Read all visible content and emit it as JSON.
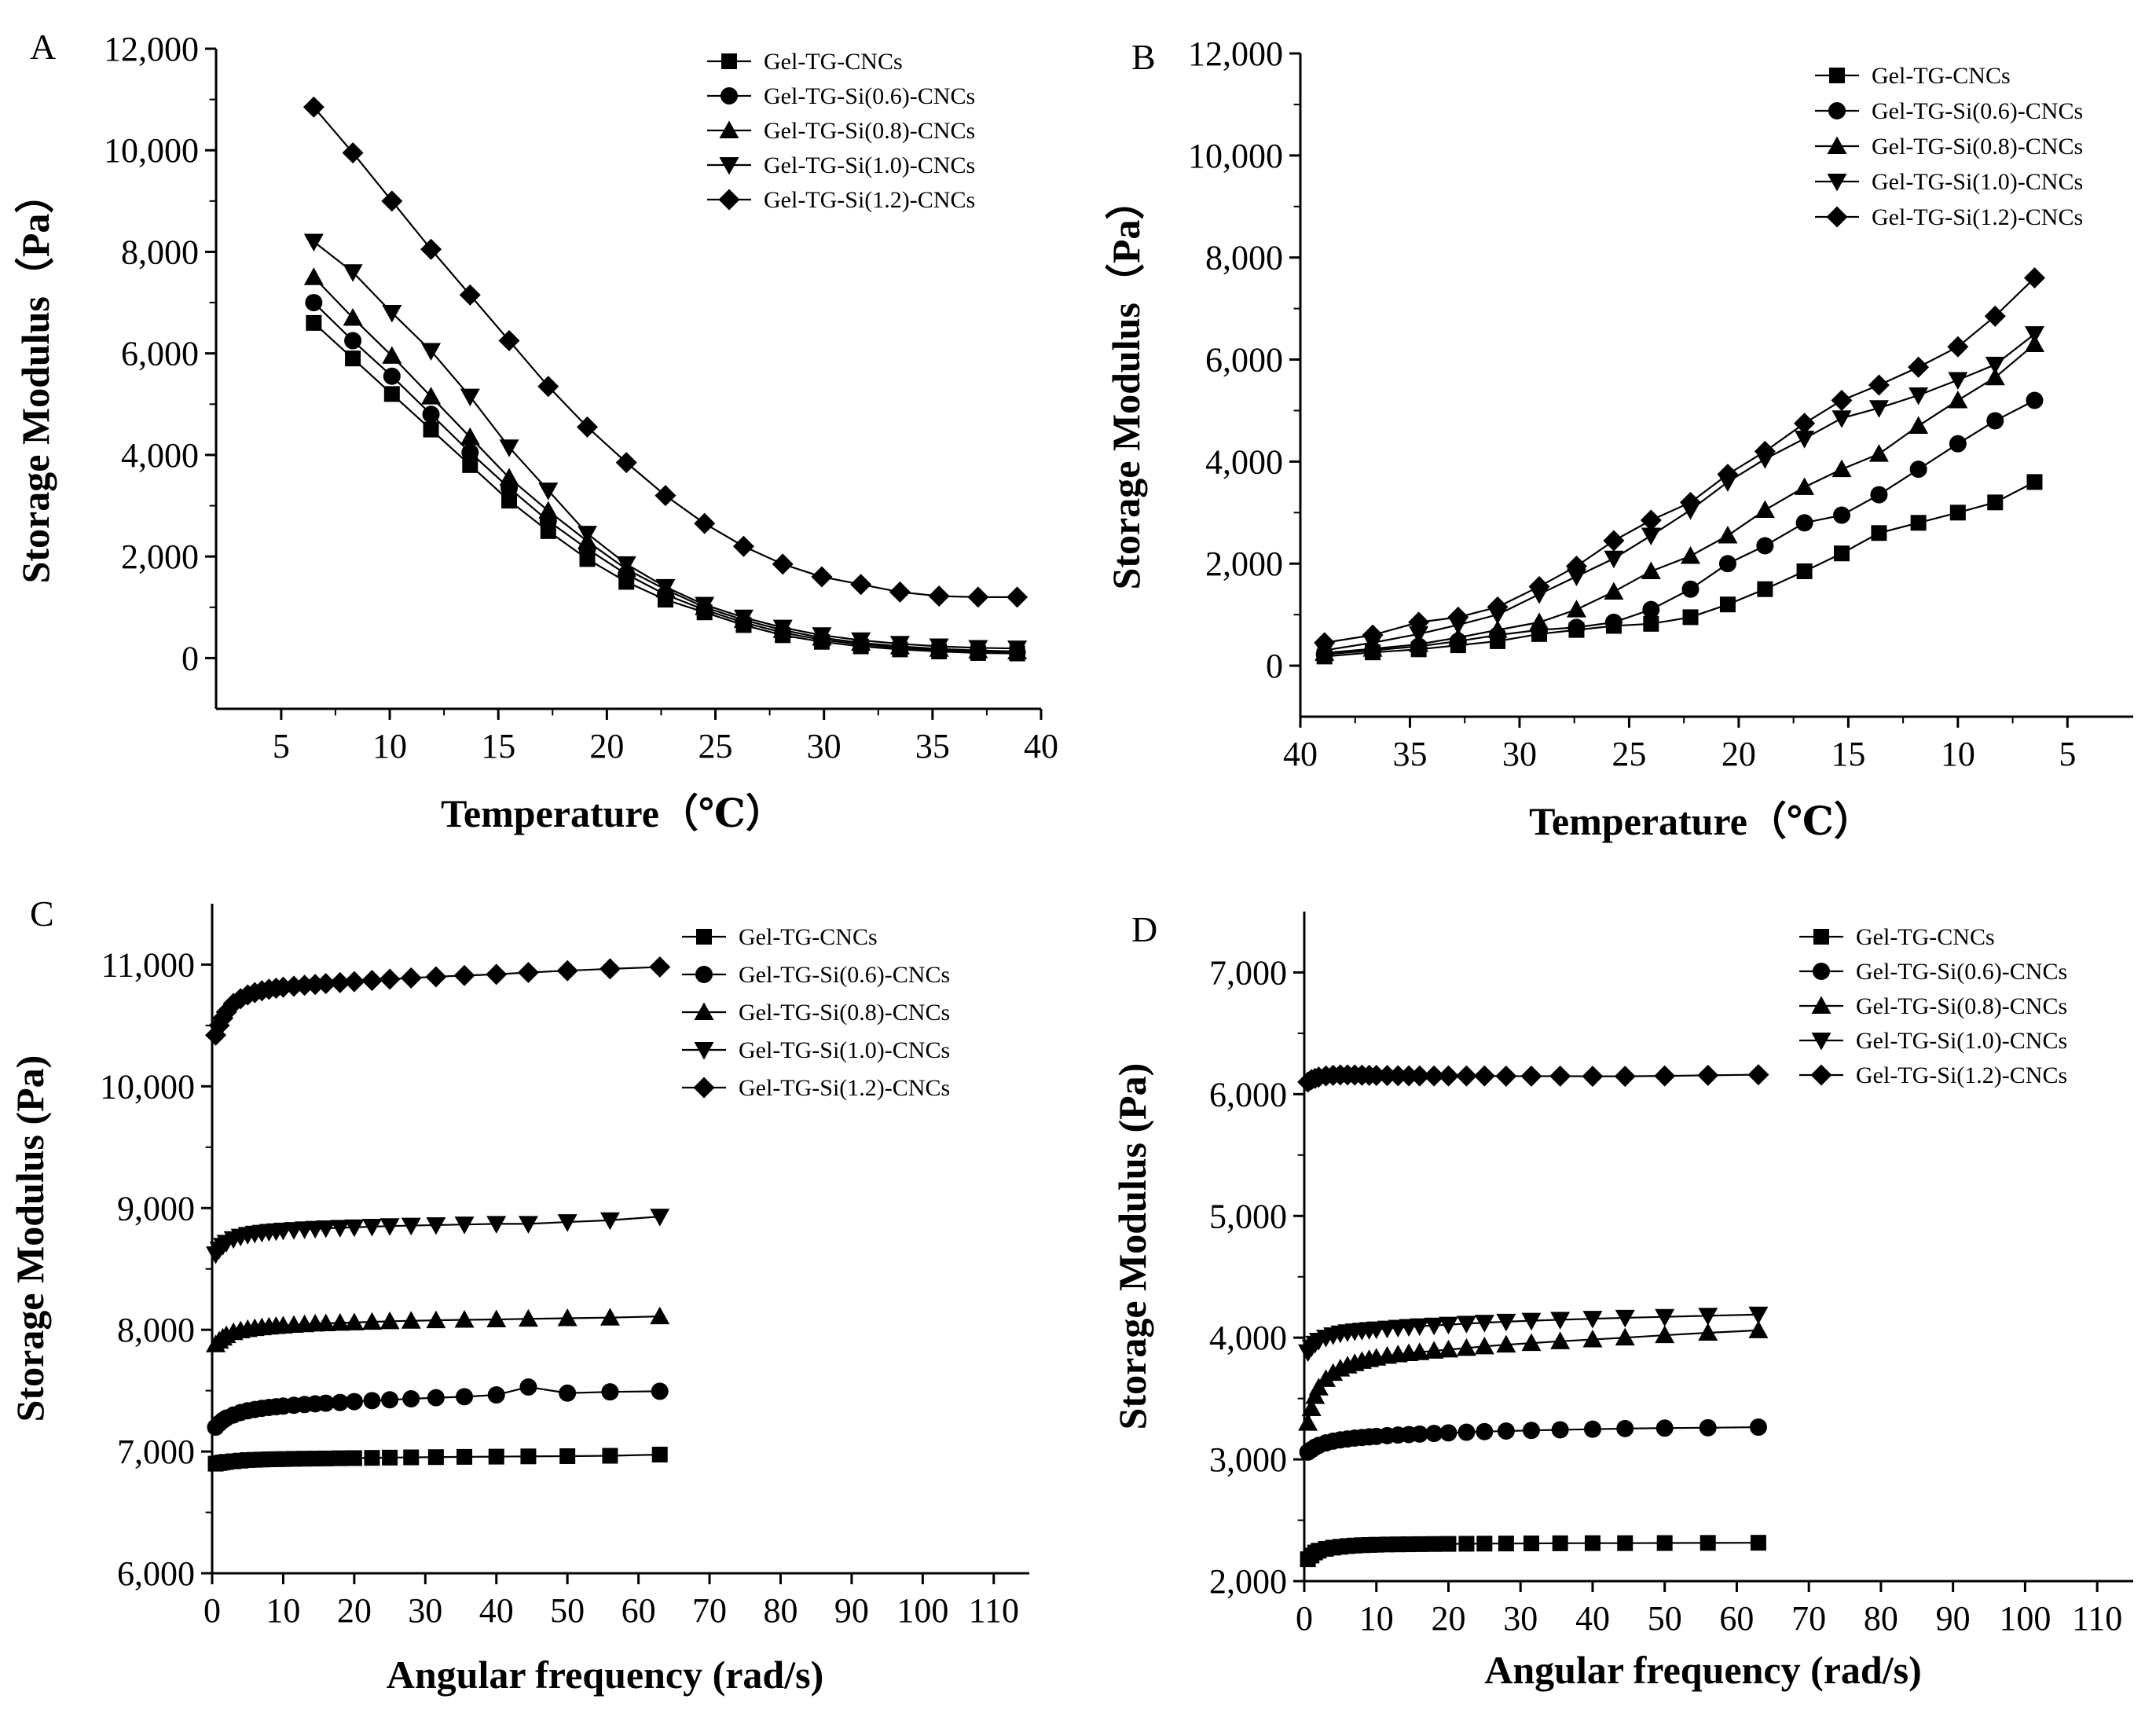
{
  "chart_data": [
    {
      "panel": "A",
      "type": "line",
      "xlabel": "Temperature（℃）",
      "ylabel": "Storage Modulus（Pa）",
      "xlim": [
        2,
        40
      ],
      "ylim": [
        -1000,
        12000
      ],
      "xticks": [
        5,
        10,
        15,
        20,
        25,
        30,
        35,
        40
      ],
      "yticks": [
        0,
        2000,
        4000,
        6000,
        8000,
        10000,
        12000
      ],
      "ytick_labels": [
        "0",
        "2,000",
        "4,000",
        "6,000",
        "8,000",
        "10,000",
        "12,000"
      ],
      "legend": "top-right",
      "x": [
        6.5,
        8.3,
        10.1,
        11.9,
        13.7,
        15.5,
        17.3,
        19.1,
        20.9,
        22.7,
        24.5,
        26.3,
        28.1,
        29.9,
        31.7,
        33.5,
        35.3,
        37.1,
        38.9
      ],
      "series": [
        {
          "name": "Gel-TG-CNCs",
          "marker": "square",
          "values": [
            6600,
            5900,
            5200,
            4500,
            3800,
            3100,
            2500,
            1950,
            1500,
            1150,
            900,
            650,
            450,
            320,
            230,
            170,
            130,
            100,
            90
          ]
        },
        {
          "name": "Gel-TG-Si(0.6)-CNCs",
          "marker": "circle",
          "values": [
            7000,
            6250,
            5550,
            4800,
            4050,
            3350,
            2700,
            2150,
            1650,
            1250,
            950,
            700,
            500,
            360,
            270,
            200,
            160,
            130,
            110
          ]
        },
        {
          "name": "Gel-TG-Si(0.8)-CNCs",
          "marker": "triangle-up",
          "values": [
            7500,
            6700,
            5950,
            5150,
            4350,
            3550,
            2900,
            2300,
            1750,
            1350,
            1000,
            750,
            550,
            400,
            300,
            230,
            180,
            150,
            130
          ]
        },
        {
          "name": "Gel-TG-Si(1.0)-CNCs",
          "marker": "triangle-down",
          "values": [
            8200,
            7600,
            6800,
            6050,
            5150,
            4150,
            3300,
            2450,
            1850,
            1400,
            1050,
            800,
            600,
            450,
            350,
            280,
            230,
            200,
            190
          ]
        },
        {
          "name": "Gel-TG-Si(1.2)-CNCs",
          "marker": "diamond",
          "values": [
            10850,
            9950,
            9000,
            8050,
            7150,
            6250,
            5350,
            4550,
            3850,
            3200,
            2650,
            2200,
            1850,
            1600,
            1450,
            1300,
            1220,
            1200,
            1200
          ]
        }
      ]
    },
    {
      "panel": "B",
      "type": "line",
      "xlabel": "Temperature（℃）",
      "ylabel": "Storage Modulus（Pa）",
      "xlim": [
        40,
        2
      ],
      "ylim": [
        -1000,
        12000
      ],
      "xticks": [
        40,
        35,
        30,
        25,
        20,
        15,
        10,
        5
      ],
      "yticks": [
        0,
        2000,
        4000,
        6000,
        8000,
        10000,
        12000
      ],
      "ytick_labels": [
        "0",
        "2,000",
        "4,000",
        "6,000",
        "8,000",
        "10,000",
        "12,000"
      ],
      "legend": "top-right",
      "x": [
        38.9,
        36.7,
        34.6,
        32.8,
        31,
        29.1,
        27.4,
        25.7,
        24,
        22.2,
        20.5,
        18.8,
        17,
        15.3,
        13.6,
        11.8,
        10,
        8.3,
        6.5
      ],
      "series": [
        {
          "name": "Gel-TG-CNCs",
          "marker": "square",
          "values": [
            180,
            260,
            320,
            400,
            480,
            620,
            700,
            780,
            820,
            950,
            1200,
            1500,
            1850,
            2200,
            2600,
            2800,
            3000,
            3200,
            3600
          ]
        },
        {
          "name": "Gel-TG-Si(0.6)-CNCs",
          "marker": "circle",
          "values": [
            220,
            300,
            380,
            480,
            600,
            700,
            750,
            850,
            1100,
            1500,
            2000,
            2350,
            2800,
            2950,
            3350,
            3850,
            4350,
            4800,
            5200
          ]
        },
        {
          "name": "Gel-TG-Si(0.8)-CNCs",
          "marker": "triangle-up",
          "values": [
            250,
            330,
            420,
            550,
            700,
            850,
            1100,
            1450,
            1850,
            2150,
            2550,
            3050,
            3500,
            3850,
            4150,
            4700,
            5200,
            5650,
            6300
          ]
        },
        {
          "name": "Gel-TG-Si(1.0)-CNCs",
          "marker": "triangle-down",
          "values": [
            300,
            450,
            620,
            800,
            1000,
            1400,
            1750,
            2100,
            2550,
            3050,
            3600,
            4050,
            4450,
            4850,
            5050,
            5300,
            5600,
            5900,
            6500
          ]
        },
        {
          "name": "Gel-TG-Si(1.2)-CNCs",
          "marker": "diamond",
          "values": [
            450,
            600,
            850,
            950,
            1150,
            1550,
            1950,
            2450,
            2850,
            3200,
            3750,
            4200,
            4750,
            5200,
            5500,
            5850,
            6250,
            6850,
            7600
          ]
        }
      ]
    },
    {
      "panel": "C",
      "type": "line",
      "xlabel": "Angular frequency (rad/s)",
      "ylabel": "Storage Modulus (Pa)",
      "xlim": [
        0,
        115
      ],
      "ylim": [
        6000,
        11500
      ],
      "xticks": [
        0,
        10,
        20,
        30,
        40,
        50,
        60,
        70,
        80,
        90,
        100,
        110
      ],
      "yticks": [
        6000,
        7000,
        8000,
        9000,
        10000,
        11000
      ],
      "ytick_labels": [
        "6,000",
        "7,000",
        "8,000",
        "9,000",
        "10,000",
        "11,000"
      ],
      "legend": "top-right",
      "x": [
        0.5,
        1,
        1.5,
        2,
        3,
        4,
        5,
        6,
        7,
        8,
        9,
        10,
        11.5,
        13,
        14.5,
        16,
        18,
        20,
        22.5,
        25,
        28,
        31.5,
        35.5,
        40,
        44.5,
        50,
        56,
        63
      ],
      "series": [
        {
          "name": "Gel-TG-CNCs",
          "marker": "square",
          "values": [
            6900,
            6905,
            6910,
            6915,
            6920,
            6925,
            6930,
            6932,
            6934,
            6936,
            6937,
            6938,
            6940,
            6941,
            6942,
            6943,
            6945,
            6946,
            6948,
            6950,
            6952,
            6954,
            6956,
            6958,
            6960,
            6962,
            6965,
            6975
          ]
        },
        {
          "name": "Gel-TG-Si(0.6)-CNCs",
          "marker": "circle",
          "values": [
            7200,
            7230,
            7255,
            7275,
            7300,
            7320,
            7335,
            7345,
            7355,
            7362,
            7368,
            7373,
            7380,
            7386,
            7392,
            7397,
            7403,
            7410,
            7418,
            7425,
            7433,
            7442,
            7450,
            7465,
            7530,
            7480,
            7490,
            7495
          ]
        },
        {
          "name": "Gel-TG-Si(0.8)-CNCs",
          "marker": "triangle-up",
          "values": [
            7880,
            7910,
            7935,
            7955,
            7980,
            7995,
            8005,
            8013,
            8020,
            8025,
            8030,
            8034,
            8040,
            8045,
            8050,
            8053,
            8057,
            8060,
            8065,
            8070,
            8074,
            8078,
            8082,
            8085,
            8090,
            8095,
            8100,
            8110
          ]
        },
        {
          "name": "Gel-TG-Si(1.0)-CNCs",
          "marker": "triangle-down",
          "values": [
            8620,
            8660,
            8690,
            8715,
            8745,
            8765,
            8780,
            8790,
            8798,
            8805,
            8810,
            8815,
            8820,
            8826,
            8830,
            8834,
            8838,
            8842,
            8847,
            8852,
            8856,
            8860,
            8865,
            8870,
            8870,
            8885,
            8900,
            8930
          ]
        },
        {
          "name": "Gel-TG-Si(1.2)-CNCs",
          "marker": "diamond",
          "values": [
            10420,
            10500,
            10560,
            10610,
            10680,
            10720,
            10750,
            10770,
            10785,
            10797,
            10806,
            10814,
            10822,
            10830,
            10837,
            10844,
            10852,
            10860,
            10870,
            10880,
            10890,
            10900,
            10910,
            10920,
            10935,
            10950,
            10965,
            10980
          ]
        }
      ]
    },
    {
      "panel": "D",
      "type": "line",
      "xlabel": "Angular frequency (rad/s)",
      "ylabel": "Storage Modulus (Pa)",
      "xlim": [
        0,
        115
      ],
      "ylim": [
        2000,
        7500
      ],
      "xticks": [
        0,
        10,
        20,
        30,
        40,
        50,
        60,
        70,
        80,
        90,
        100,
        110
      ],
      "yticks": [
        2000,
        3000,
        4000,
        5000,
        6000,
        7000
      ],
      "ytick_labels": [
        "2,000",
        "3,000",
        "4,000",
        "5,000",
        "6,000",
        "7,000"
      ],
      "legend": "top-right",
      "x": [
        0.5,
        1,
        1.5,
        2,
        3,
        4,
        5,
        6,
        7,
        8,
        9,
        10,
        11.5,
        13,
        14.5,
        16,
        18,
        20,
        22.5,
        25,
        28,
        31.5,
        35.5,
        40,
        44.5,
        50,
        56,
        63
      ],
      "series": [
        {
          "name": "Gel-TG-CNCs",
          "marker": "square",
          "values": [
            2180,
            2210,
            2235,
            2250,
            2265,
            2275,
            2282,
            2288,
            2292,
            2295,
            2297,
            2299,
            2301,
            2302,
            2303,
            2304,
            2305,
            2306,
            2307,
            2308,
            2309,
            2310,
            2311,
            2312,
            2312,
            2313,
            2314,
            2315
          ]
        },
        {
          "name": "Gel-TG-Si(0.6)-CNCs",
          "marker": "circle",
          "values": [
            3060,
            3080,
            3100,
            3115,
            3135,
            3150,
            3160,
            3168,
            3175,
            3180,
            3185,
            3189,
            3195,
            3200,
            3204,
            3208,
            3213,
            3218,
            3223,
            3228,
            3233,
            3238,
            3243,
            3248,
            3253,
            3257,
            3260,
            3265
          ]
        },
        {
          "name": "Gel-TG-Si(0.8)-CNCs",
          "marker": "triangle-up",
          "values": [
            3300,
            3420,
            3520,
            3590,
            3660,
            3710,
            3745,
            3770,
            3790,
            3808,
            3823,
            3835,
            3850,
            3862,
            3872,
            3880,
            3892,
            3902,
            3915,
            3928,
            3942,
            3955,
            3970,
            3985,
            4000,
            4020,
            4040,
            4060
          ]
        },
        {
          "name": "Gel-TG-Si(1.0)-CNCs",
          "marker": "triangle-down",
          "values": [
            3880,
            3920,
            3950,
            3975,
            4000,
            4020,
            4035,
            4045,
            4052,
            4058,
            4063,
            4068,
            4075,
            4082,
            4088,
            4094,
            4100,
            4107,
            4115,
            4123,
            4131,
            4139,
            4147,
            4155,
            4163,
            4171,
            4180,
            4190
          ]
        },
        {
          "name": "Gel-TG-Si(1.2)-CNCs",
          "marker": "diamond",
          "values": [
            6100,
            6120,
            6130,
            6140,
            6150,
            6155,
            6158,
            6158,
            6157,
            6156,
            6155,
            6154,
            6153,
            6152,
            6151,
            6150,
            6150,
            6150,
            6150,
            6150,
            6148,
            6148,
            6148,
            6147,
            6147,
            6150,
            6155,
            6160
          ]
        }
      ]
    }
  ]
}
